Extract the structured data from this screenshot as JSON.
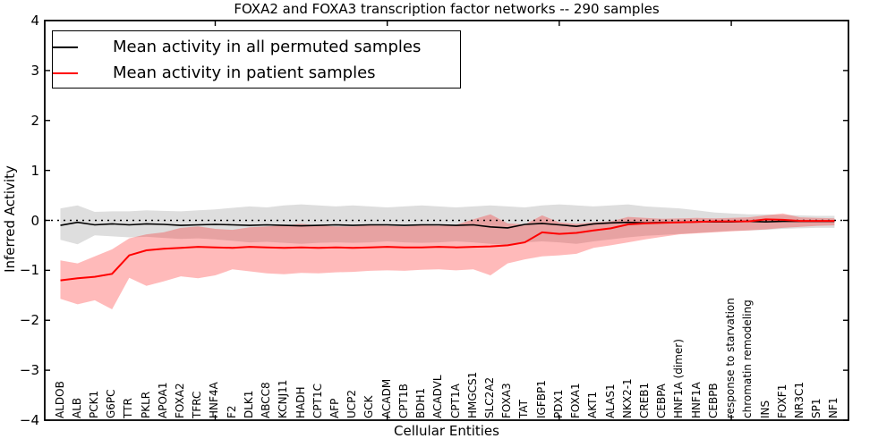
{
  "chart_data": {
    "type": "line",
    "title": "FOXA2 and FOXA3 transcription factor networks -- 290 samples",
    "xlabel": "Cellular Entities",
    "ylabel": "Inferred Activity",
    "ylim": [
      -4,
      4
    ],
    "grid": false,
    "zero_line_style": "dotted",
    "legend_position": "upper left",
    "y_ticks": [
      "4",
      "3",
      "2",
      "1",
      "0",
      "−1",
      "−2",
      "−3",
      "−4"
    ],
    "x_major_tick_indices": [
      9,
      19,
      29,
      39
    ],
    "categories": [
      "ALDOB",
      "ALB",
      "PCK1",
      "G6PC",
      "TTR",
      "PKLR",
      "APOA1",
      "FOXA2",
      "TFRC",
      "HNF4A",
      "F2",
      "DLK1",
      "ABCC8",
      "KCNJ11",
      "HADH",
      "CPT1C",
      "AFP",
      "UCP2",
      "GCK",
      "ACADM",
      "CPT1B",
      "BDH1",
      "ACADVL",
      "CPT1A",
      "HMGCS1",
      "SLC2A2",
      "FOXA3",
      "TAT",
      "IGFBP1",
      "PDX1",
      "FOXA1",
      "AKT1",
      "ALAS1",
      "NKX2-1",
      "CREB1",
      "CEBPA",
      "HNF1A (dimer)",
      "HNF1A",
      "CEBPB",
      "response to starvation",
      "chromatin remodeling",
      "INS",
      "FOXF1",
      "NR3C1",
      "SP1",
      "NF1"
    ],
    "series": [
      {
        "name": "Mean activity in all permuted samples",
        "color": "#000000",
        "band_color": "rgba(0,0,0,0.13)",
        "values": [
          -0.1,
          -0.04,
          -0.09,
          -0.07,
          -0.09,
          -0.07,
          -0.08,
          -0.1,
          -0.09,
          -0.08,
          -0.09,
          -0.1,
          -0.09,
          -0.1,
          -0.11,
          -0.1,
          -0.09,
          -0.1,
          -0.09,
          -0.09,
          -0.1,
          -0.09,
          -0.09,
          -0.1,
          -0.09,
          -0.13,
          -0.15,
          -0.08,
          -0.06,
          -0.09,
          -0.12,
          -0.07,
          -0.05,
          -0.04,
          -0.05,
          -0.04,
          -0.04,
          -0.03,
          -0.03,
          -0.03,
          -0.02,
          -0.03,
          -0.02,
          -0.02,
          -0.02,
          -0.02
        ],
        "band_upper": [
          0.24,
          0.3,
          0.17,
          0.18,
          0.18,
          0.2,
          0.19,
          0.18,
          0.2,
          0.22,
          0.25,
          0.28,
          0.26,
          0.3,
          0.32,
          0.3,
          0.28,
          0.3,
          0.28,
          0.26,
          0.28,
          0.3,
          0.28,
          0.26,
          0.28,
          0.3,
          0.28,
          0.26,
          0.3,
          0.32,
          0.3,
          0.28,
          0.3,
          0.32,
          0.28,
          0.26,
          0.24,
          0.2,
          0.16,
          0.14,
          0.12,
          0.12,
          0.11,
          0.1,
          0.09,
          0.09
        ],
        "band_lower": [
          -0.39,
          -0.48,
          -0.3,
          -0.32,
          -0.34,
          -0.33,
          -0.35,
          -0.37,
          -0.36,
          -0.38,
          -0.41,
          -0.44,
          -0.43,
          -0.45,
          -0.47,
          -0.45,
          -0.44,
          -0.45,
          -0.44,
          -0.42,
          -0.44,
          -0.45,
          -0.44,
          -0.42,
          -0.44,
          -0.47,
          -0.49,
          -0.44,
          -0.42,
          -0.44,
          -0.47,
          -0.42,
          -0.38,
          -0.34,
          -0.31,
          -0.29,
          -0.27,
          -0.25,
          -0.23,
          -0.21,
          -0.2,
          -0.19,
          -0.17,
          -0.16,
          -0.15,
          -0.15
        ]
      },
      {
        "name": "Mean activity in patient samples",
        "color": "#ff0000",
        "band_color": "rgba(255,0,0,0.27)",
        "values": [
          -1.2,
          -1.16,
          -1.13,
          -1.07,
          -0.7,
          -0.6,
          -0.57,
          -0.55,
          -0.53,
          -0.54,
          -0.55,
          -0.53,
          -0.54,
          -0.55,
          -0.54,
          -0.55,
          -0.54,
          -0.55,
          -0.54,
          -0.53,
          -0.54,
          -0.54,
          -0.53,
          -0.54,
          -0.53,
          -0.52,
          -0.5,
          -0.44,
          -0.24,
          -0.27,
          -0.25,
          -0.2,
          -0.16,
          -0.08,
          -0.06,
          -0.05,
          -0.04,
          -0.03,
          -0.02,
          -0.02,
          -0.02,
          0.02,
          0.01,
          -0.01,
          -0.01,
          -0.01
        ],
        "band_upper": [
          -0.8,
          -0.86,
          -0.72,
          -0.58,
          -0.36,
          -0.28,
          -0.24,
          -0.15,
          -0.12,
          -0.17,
          -0.19,
          -0.14,
          -0.12,
          -0.1,
          -0.07,
          -0.1,
          -0.12,
          -0.12,
          -0.1,
          -0.11,
          -0.12,
          -0.1,
          -0.11,
          -0.09,
          0.02,
          0.12,
          -0.06,
          -0.08,
          0.1,
          -0.04,
          -0.07,
          -0.04,
          -0.02,
          0.07,
          0.05,
          0.03,
          0.04,
          0.05,
          0.04,
          0.05,
          0.06,
          0.1,
          0.14,
          0.06,
          0.05,
          0.04
        ],
        "band_lower": [
          -1.57,
          -1.68,
          -1.6,
          -1.78,
          -1.15,
          -1.31,
          -1.22,
          -1.12,
          -1.16,
          -1.1,
          -0.98,
          -1.02,
          -1.06,
          -1.08,
          -1.05,
          -1.06,
          -1.04,
          -1.03,
          -1.01,
          -1.0,
          -1.01,
          -0.99,
          -0.98,
          -1.0,
          -0.98,
          -1.1,
          -0.86,
          -0.78,
          -0.72,
          -0.7,
          -0.67,
          -0.55,
          -0.5,
          -0.44,
          -0.38,
          -0.33,
          -0.28,
          -0.26,
          -0.24,
          -0.22,
          -0.2,
          -0.18,
          -0.15,
          -0.13,
          -0.11,
          -0.1
        ]
      }
    ]
  }
}
